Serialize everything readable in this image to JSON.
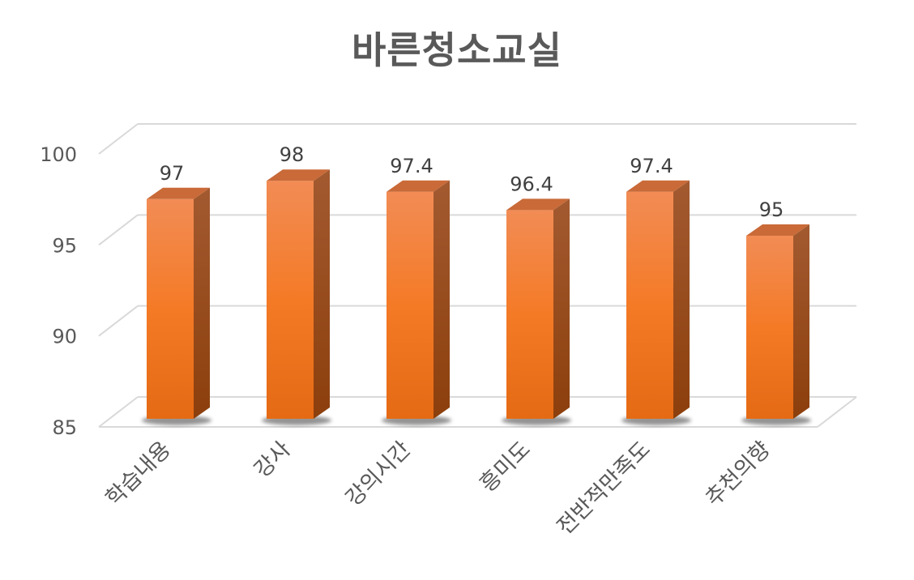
{
  "chart_data": {
    "type": "bar",
    "title": "바른청소교실",
    "categories": [
      "학습내용",
      "강사",
      "강의시간",
      "흥미도",
      "전반적만족도",
      "추천의향"
    ],
    "values": [
      97,
      98,
      97.4,
      96.4,
      97.4,
      95
    ],
    "data_labels": [
      "97",
      "98",
      "97.4",
      "96.4",
      "97.4",
      "95"
    ],
    "yticks": [
      "85",
      "90",
      "95",
      "100"
    ],
    "ylim": [
      85,
      100
    ],
    "xlabel": "",
    "ylabel": "",
    "grid": true,
    "legend": "none",
    "bar_color": "#f07a2a",
    "bar_side_color": "#9a4a16",
    "bar_top_color": "#c96a38"
  }
}
